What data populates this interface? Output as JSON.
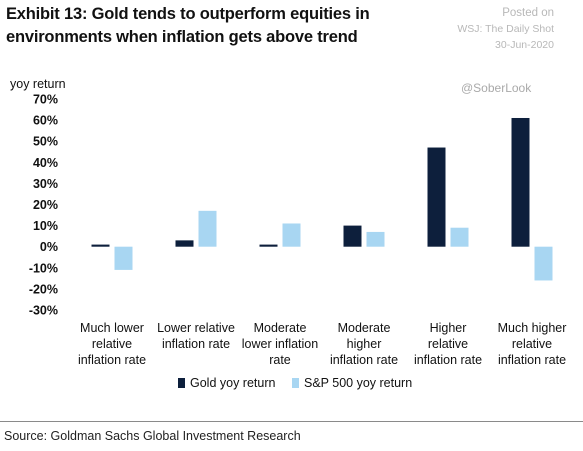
{
  "header": {
    "title": "Exhibit 13: Gold tends to outperform equities in environments when inflation gets above trend",
    "posted_lines": [
      "Posted on",
      "WSJ: The Daily Shot",
      "30-Jun-2020"
    ],
    "handle": "@SoberLook"
  },
  "source": "Source: Goldman Sachs Global Investment Research",
  "colors": {
    "gold": "#0d1f3c",
    "sp500": "#a8d6f2"
  },
  "chart_data": {
    "type": "bar",
    "ylabel": "yoy return",
    "ylim": [
      -30,
      70
    ],
    "yticks": [
      70,
      60,
      50,
      40,
      30,
      20,
      10,
      0,
      -10,
      -20,
      -30
    ],
    "ytick_labels": [
      "70%",
      "60%",
      "50%",
      "40%",
      "30%",
      "20%",
      "10%",
      "0%",
      "-10%",
      "-20%",
      "-30%"
    ],
    "grid": false,
    "legend_position": "bottom",
    "categories": [
      [
        "Much lower",
        "relative",
        "inflation rate"
      ],
      [
        "Lower relative",
        "inflation rate"
      ],
      [
        "Moderate",
        "lower inflation",
        "rate"
      ],
      [
        "Moderate",
        "higher",
        "inflation rate"
      ],
      [
        "Higher",
        "relative",
        "inflation rate"
      ],
      [
        "Much higher",
        "relative",
        "inflation rate"
      ]
    ],
    "series": [
      {
        "name": "Gold yoy return",
        "values": [
          1,
          3,
          1,
          10,
          47,
          61
        ]
      },
      {
        "name": "S&P 500 yoy return",
        "values": [
          -11,
          17,
          11,
          7,
          9,
          -16
        ]
      }
    ]
  }
}
